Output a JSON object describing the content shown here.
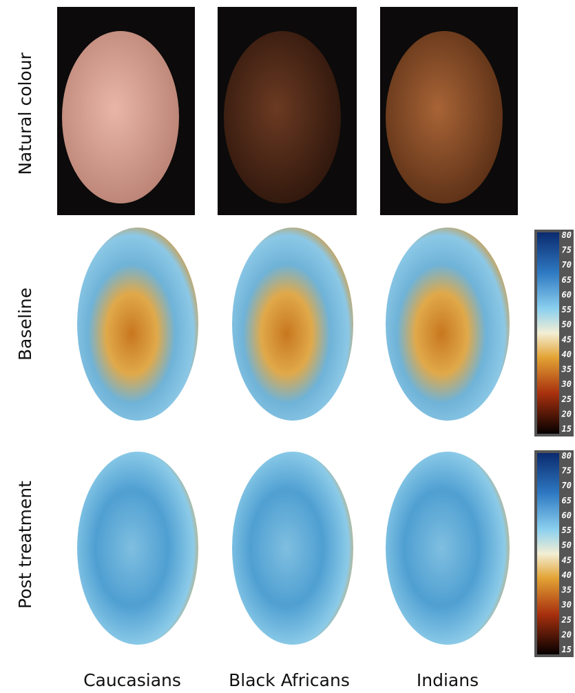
{
  "rows": [
    "Natural colour",
    "Baseline",
    "Post treatment"
  ],
  "columns": [
    "Caucasians",
    "Black Africans",
    "Indians"
  ],
  "colorbars": [
    {
      "ticks": [
        80,
        75,
        70,
        65,
        60,
        55,
        50,
        45,
        40,
        35,
        30,
        25,
        20,
        15
      ]
    },
    {
      "ticks": [
        80,
        75,
        70,
        65,
        60,
        55,
        50,
        45,
        40,
        35,
        30,
        25,
        20,
        15
      ]
    }
  ]
}
